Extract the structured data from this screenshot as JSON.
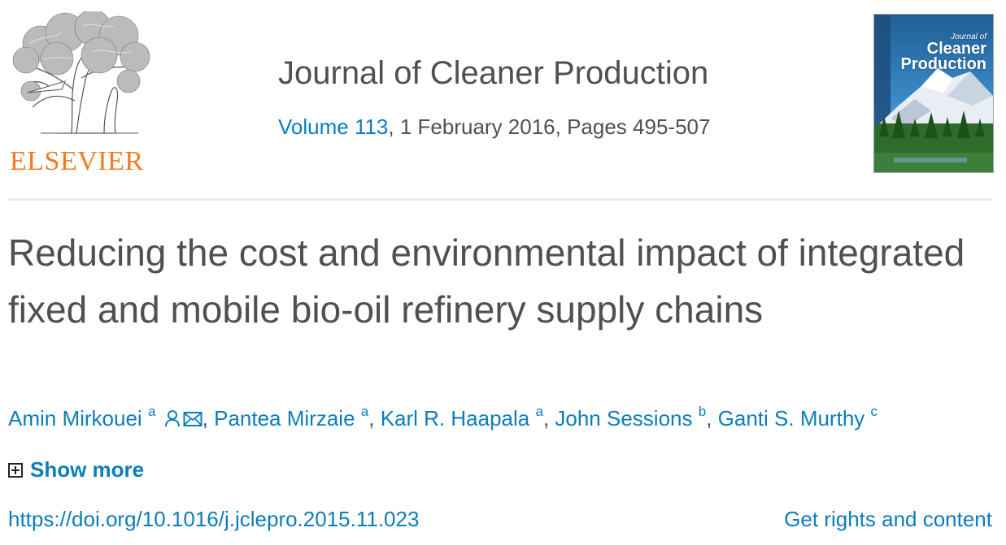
{
  "publisher": {
    "name": "ELSEVIER"
  },
  "journal": {
    "title": "Journal of Cleaner Production",
    "volume_link": "Volume 113",
    "issue_details": ", 1 February 2016, Pages 495-507",
    "cover": {
      "line1": "Journal of",
      "line2": "Cleaner",
      "line3": "Production"
    }
  },
  "article": {
    "title": "Reducing the cost and environmental impact of integrated fixed and mobile bio-oil refinery supply chains",
    "authors": [
      {
        "name": "Amin Mirkouei",
        "aff": "a"
      },
      {
        "name": "Pantea Mirzaie",
        "aff": "a"
      },
      {
        "name": "Karl R. Haapala",
        "aff": "a"
      },
      {
        "name": "John Sessions",
        "aff": "b"
      },
      {
        "name": "Ganti S. Murthy",
        "aff": "c"
      }
    ],
    "separator": ", ",
    "show_more": "Show more",
    "doi": "https://doi.org/10.1016/j.jclepro.2015.11.023",
    "rights": "Get rights and content"
  },
  "icons": {
    "author_person": "person-icon",
    "author_email": "envelope-icon",
    "expand": "plus-box-icon"
  },
  "colors": {
    "link": "#0c7dbb",
    "text": "#505050",
    "publisher": "#f47b20",
    "divider": "#e8e8e8"
  }
}
